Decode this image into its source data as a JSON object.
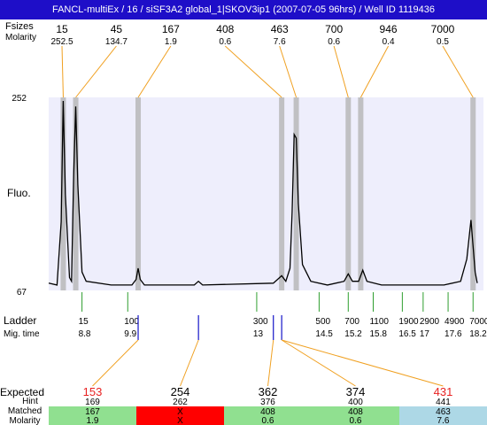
{
  "title": "FANCL-multiEx / 16 / siSF3A2 global_1|SKOV3ip1 (2007-07-05 96hrs) / Well ID 1119436",
  "labels": {
    "size_row": "Fsizes",
    "molarity_row": "Molarity",
    "fluo": "Fluo.",
    "ladder": "Ladder",
    "mig_time": "Mig. time",
    "expected": "Expected",
    "hint": "Hint",
    "matched": "Matched",
    "molarity": "Molarity"
  },
  "colors": {
    "title_bg": "#1e0ec8",
    "plot_bg": "#eeeefc",
    "trace": "#000000",
    "peak_band": "#b4b4b4",
    "connector": "#f0a020",
    "ladder_tick": "#2e9e2e",
    "sample_tick": "#1414c8",
    "expected_red": "#e82020",
    "row_green": "#90e090",
    "row_red": "#ff0000",
    "row_blue": "#add8e6"
  },
  "chart_data": {
    "type": "line",
    "title": "FANCL-multiEx / 16 / siSF3A2 global_1|SKOV3ip1 (2007-07-05 96hrs) / Well ID 1119436",
    "ylabel": "Fluo.",
    "xlabel": "Mig. time",
    "ylim": [
      67,
      252
    ],
    "y_ticks": [
      "252",
      "67"
    ],
    "peaks": [
      {
        "size": "15",
        "molarity": "252.5",
        "time": 8.35
      },
      {
        "size": "45",
        "molarity": "134.7",
        "time": 8.65
      },
      {
        "size": "167",
        "molarity": "1.9",
        "time": 10.15
      },
      {
        "size": "408",
        "molarity": "0.6",
        "time": 13.6
      },
      {
        "size": "463",
        "molarity": "7.6",
        "time": 13.95
      },
      {
        "size": "700",
        "molarity": "0.6",
        "time": 15.2
      },
      {
        "size": "946",
        "molarity": "0.4",
        "time": 15.5
      },
      {
        "size": "7000",
        "molarity": "0.5",
        "time": 18.2
      }
    ],
    "ladder": [
      {
        "size": "15",
        "time": "8.8"
      },
      {
        "size": "100",
        "time": "9.9"
      },
      {
        "size": "300",
        "time": "13"
      },
      {
        "size": "500",
        "time": "14.5"
      },
      {
        "size": "700",
        "time": "15.2"
      },
      {
        "size": "1100",
        "time": "15.8"
      },
      {
        "size": "1900",
        "time": "16.5"
      },
      {
        "size": "2900",
        "time": "17"
      },
      {
        "size": "4900",
        "time": "17.6"
      },
      {
        "size": "7000",
        "time": "18.2"
      }
    ],
    "sample_marker_times": [
      10.15,
      11.6,
      13.4,
      13.6
    ],
    "expected": [
      {
        "expected": "153",
        "hint": "169",
        "matched": "167",
        "molarity": "1.9",
        "status": "match",
        "red": true
      },
      {
        "expected": "254",
        "hint": "262",
        "matched": "X",
        "molarity": "X",
        "status": "none",
        "red": false
      },
      {
        "expected": "362",
        "hint": "376",
        "matched": "408",
        "molarity": "0.6",
        "status": "match",
        "red": false
      },
      {
        "expected": "374",
        "hint": "400",
        "matched": "408",
        "molarity": "0.6",
        "status": "match",
        "red": false
      },
      {
        "expected": "431",
        "hint": "441",
        "matched": "463",
        "molarity": "7.6",
        "status": "other",
        "red": true
      }
    ],
    "expected_targets": [
      10.15,
      11.6,
      13.4,
      13.6,
      13.6
    ],
    "trace": [
      [
        8.0,
        0.02
      ],
      [
        8.2,
        0.01
      ],
      [
        8.3,
        0.35
      ],
      [
        8.35,
        1.0
      ],
      [
        8.4,
        0.5
      ],
      [
        8.5,
        0.05
      ],
      [
        8.55,
        0.03
      ],
      [
        8.6,
        0.6
      ],
      [
        8.65,
        0.97
      ],
      [
        8.7,
        0.55
      ],
      [
        8.8,
        0.08
      ],
      [
        8.9,
        0.03
      ],
      [
        9.5,
        0.01
      ],
      [
        10.0,
        0.01
      ],
      [
        10.1,
        0.04
      ],
      [
        10.15,
        0.1
      ],
      [
        10.2,
        0.04
      ],
      [
        10.3,
        0.01
      ],
      [
        11.5,
        0.01
      ],
      [
        11.6,
        0.03
      ],
      [
        11.7,
        0.01
      ],
      [
        13.4,
        0.02
      ],
      [
        13.55,
        0.05
      ],
      [
        13.6,
        0.06
      ],
      [
        13.7,
        0.03
      ],
      [
        13.8,
        0.1
      ],
      [
        13.85,
        0.4
      ],
      [
        13.9,
        0.82
      ],
      [
        13.95,
        0.8
      ],
      [
        14.0,
        0.45
      ],
      [
        14.1,
        0.12
      ],
      [
        14.3,
        0.03
      ],
      [
        14.7,
        0.01
      ],
      [
        15.1,
        0.03
      ],
      [
        15.2,
        0.07
      ],
      [
        15.3,
        0.03
      ],
      [
        15.45,
        0.03
      ],
      [
        15.55,
        0.09
      ],
      [
        15.65,
        0.03
      ],
      [
        16.0,
        0.01
      ],
      [
        17.5,
        0.01
      ],
      [
        17.9,
        0.03
      ],
      [
        18.05,
        0.15
      ],
      [
        18.15,
        0.36
      ],
      [
        18.25,
        0.08
      ],
      [
        18.3,
        0.02
      ]
    ]
  }
}
